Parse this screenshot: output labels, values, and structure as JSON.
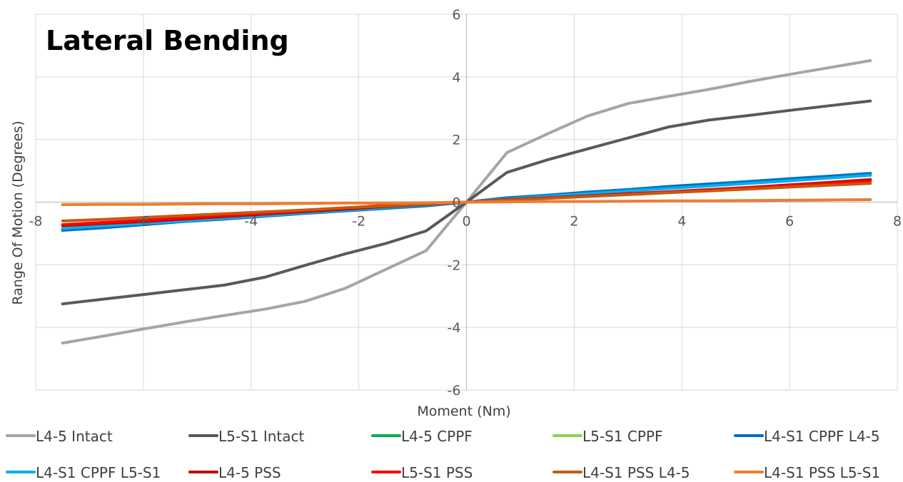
{
  "chart_data": {
    "type": "line",
    "title": "Lateral Bending",
    "xlabel": "Moment (Nm)",
    "ylabel": "Range Of Motion (Degrees)",
    "xlim": [
      -8,
      8
    ],
    "ylim": [
      -6,
      6
    ],
    "xticks": [
      -8,
      -6,
      -4,
      -2,
      0,
      2,
      4,
      6,
      8
    ],
    "yticks": [
      -6,
      -4,
      -2,
      0,
      2,
      4,
      6
    ],
    "x_tick_labels": [
      "-8",
      "-6",
      "-4",
      "-2",
      "0",
      "2",
      "4",
      "6",
      "8"
    ],
    "y_tick_labels": [
      "-6",
      "-4",
      "-2",
      "0",
      "2",
      "4",
      "6"
    ],
    "grid": true,
    "legend_position": "bottom",
    "x": [
      -7.5,
      -6.75,
      -6,
      -5.25,
      -4.5,
      -3.75,
      -3,
      -2.25,
      -1.5,
      -0.75,
      0,
      0.75,
      1.5,
      2.25,
      3,
      3.75,
      4.5,
      5.25,
      6,
      6.75,
      7.5
    ],
    "series": [
      {
        "name": "L4-5 Intact",
        "color": "#a5a5a5",
        "values": [
          -4.5,
          -4.28,
          -4.05,
          -3.83,
          -3.62,
          -3.42,
          -3.17,
          -2.75,
          -2.15,
          -1.55,
          0,
          1.58,
          2.18,
          2.75,
          3.15,
          3.38,
          3.6,
          3.85,
          4.08,
          4.3,
          4.52
        ]
      },
      {
        "name": "L5-S1 Intact",
        "color": "#595959",
        "values": [
          -3.25,
          -3.1,
          -2.95,
          -2.8,
          -2.65,
          -2.4,
          -2.02,
          -1.65,
          -1.32,
          -0.92,
          0,
          0.95,
          1.35,
          1.7,
          2.05,
          2.4,
          2.62,
          2.77,
          2.93,
          3.08,
          3.23
        ]
      },
      {
        "name": "L4-5 CPPF",
        "color": "#00b050",
        "values": [
          -0.86,
          -0.78,
          -0.7,
          -0.6,
          -0.52,
          -0.44,
          -0.35,
          -0.27,
          -0.18,
          -0.1,
          0,
          0.12,
          0.2,
          0.3,
          0.38,
          0.46,
          0.54,
          0.62,
          0.7,
          0.78,
          0.86
        ]
      },
      {
        "name": "L5-S1 CPPF",
        "color": "#92d050",
        "values": [
          -0.85,
          -0.77,
          -0.69,
          -0.6,
          -0.52,
          -0.43,
          -0.35,
          -0.26,
          -0.18,
          -0.09,
          0,
          0.11,
          0.2,
          0.29,
          0.37,
          0.46,
          0.54,
          0.63,
          0.71,
          0.8,
          0.88
        ]
      },
      {
        "name": "L4-S1 CPPF L4-5",
        "color": "#0070c0",
        "values": [
          -0.9,
          -0.82,
          -0.72,
          -0.62,
          -0.54,
          -0.45,
          -0.36,
          -0.28,
          -0.2,
          -0.12,
          0,
          0.14,
          0.22,
          0.32,
          0.4,
          0.5,
          0.58,
          0.66,
          0.75,
          0.83,
          0.92
        ]
      },
      {
        "name": "L4-S1 CPPF L5-S1",
        "color": "#00b0f0",
        "values": [
          -0.84,
          -0.76,
          -0.68,
          -0.6,
          -0.51,
          -0.43,
          -0.34,
          -0.26,
          -0.17,
          -0.09,
          0,
          0.1,
          0.19,
          0.27,
          0.36,
          0.44,
          0.52,
          0.6,
          0.68,
          0.77,
          0.86
        ]
      },
      {
        "name": "L4-5 PSS",
        "color": "#c00000",
        "values": [
          -0.75,
          -0.68,
          -0.62,
          -0.54,
          -0.46,
          -0.38,
          -0.3,
          -0.22,
          -0.14,
          -0.07,
          0,
          0.08,
          0.14,
          0.2,
          0.27,
          0.33,
          0.4,
          0.47,
          0.55,
          0.63,
          0.72
        ]
      },
      {
        "name": "L5-S1 PSS",
        "color": "#ff0000",
        "values": [
          -0.72,
          -0.65,
          -0.58,
          -0.5,
          -0.43,
          -0.35,
          -0.27,
          -0.19,
          -0.1,
          -0.05,
          0,
          0.07,
          0.13,
          0.19,
          0.26,
          0.32,
          0.39,
          0.46,
          0.53,
          0.6,
          0.68
        ]
      },
      {
        "name": "L4-S1 PSS L4-5",
        "color": "#c55a11",
        "values": [
          -0.6,
          -0.55,
          -0.49,
          -0.43,
          -0.37,
          -0.31,
          -0.25,
          -0.18,
          -0.12,
          -0.06,
          0,
          0.06,
          0.12,
          0.18,
          0.24,
          0.3,
          0.36,
          0.42,
          0.48,
          0.54,
          0.6
        ]
      },
      {
        "name": "L4-S1 PSS L5-S1",
        "color": "#ed7d31",
        "values": [
          -0.08,
          -0.07,
          -0.07,
          -0.06,
          -0.05,
          -0.05,
          -0.04,
          -0.03,
          -0.03,
          -0.02,
          0,
          0.01,
          0.02,
          0.02,
          0.03,
          0.04,
          0.04,
          0.05,
          0.06,
          0.07,
          0.08
        ]
      }
    ]
  }
}
